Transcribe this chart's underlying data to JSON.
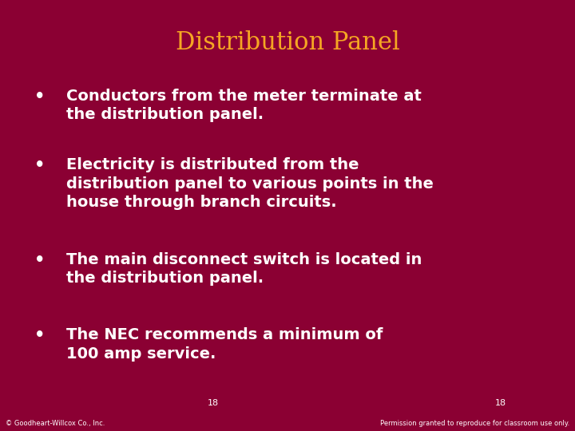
{
  "title": "Distribution Panel",
  "title_color": "#F5A623",
  "background_color": "#8B0033",
  "bullet_color": "#FFFFFF",
  "bullet_points": [
    "Conductors from the meter terminate at\nthe distribution panel.",
    "Electricity is distributed from the\ndistribution panel to various points in the\nhouse through branch circuits.",
    "The main disconnect switch is located in\nthe distribution panel.",
    "The NEC recommends a minimum of\n100 amp service."
  ],
  "footer_left": "© Goodheart-Willcox Co., Inc.",
  "footer_right": "Permission granted to reproduce for classroom use only.",
  "page_number": "18",
  "title_fontsize": 22,
  "bullet_fontsize": 14,
  "footer_fontsize": 6,
  "page_num_fontsize": 8
}
